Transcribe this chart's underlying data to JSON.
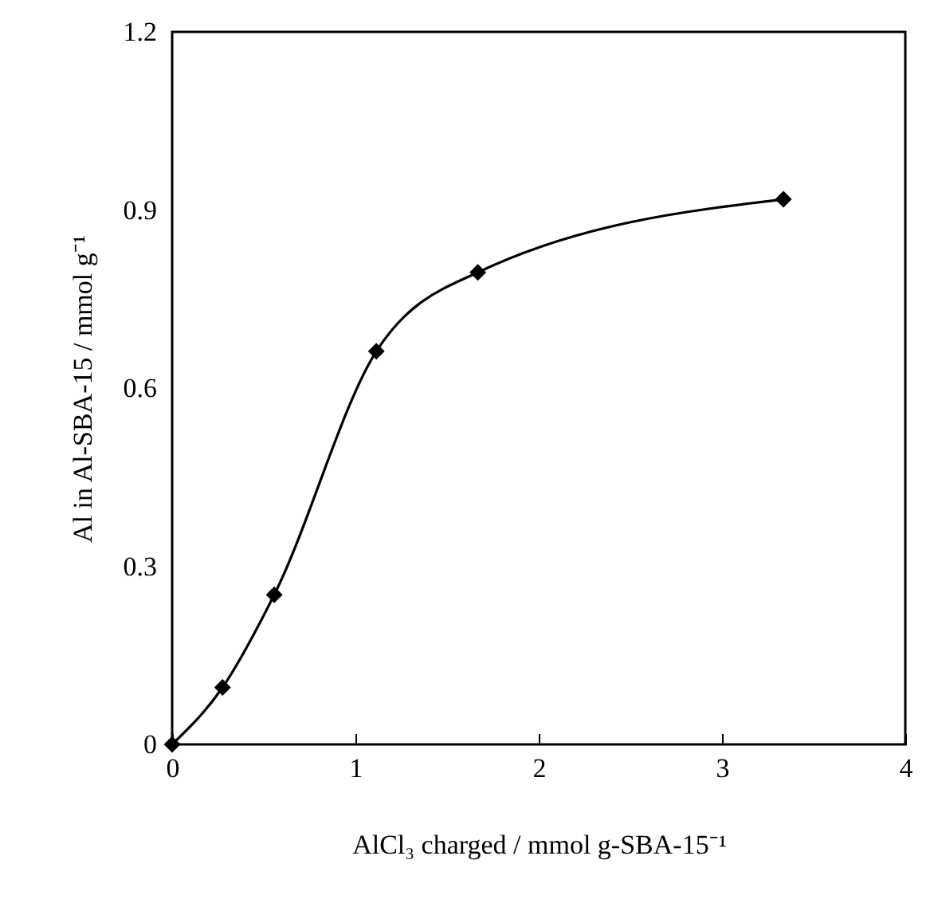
{
  "chart_data": {
    "type": "line",
    "xlabel": "AlCl₃ charged / mmol g-SBA-15⁻¹",
    "ylabel": "Al in Al-SBA-15 / mmol g⁻¹",
    "x": [
      0,
      0.275,
      0.557,
      1.114,
      1.668,
      3.335
    ],
    "series": [
      {
        "color": "#000000",
        "values": [
          0,
          0.096,
          0.252,
          0.662,
          0.795,
          0.918
        ]
      }
    ],
    "xlim": [
      0,
      4
    ],
    "xticks": [
      0,
      1,
      2,
      3,
      4
    ],
    "ylim": [
      0,
      1.2
    ],
    "yticks": [
      0,
      0.3,
      0.6,
      0.9,
      1.2
    ],
    "grid": false,
    "marker": "diamond",
    "line_style": "solid"
  }
}
